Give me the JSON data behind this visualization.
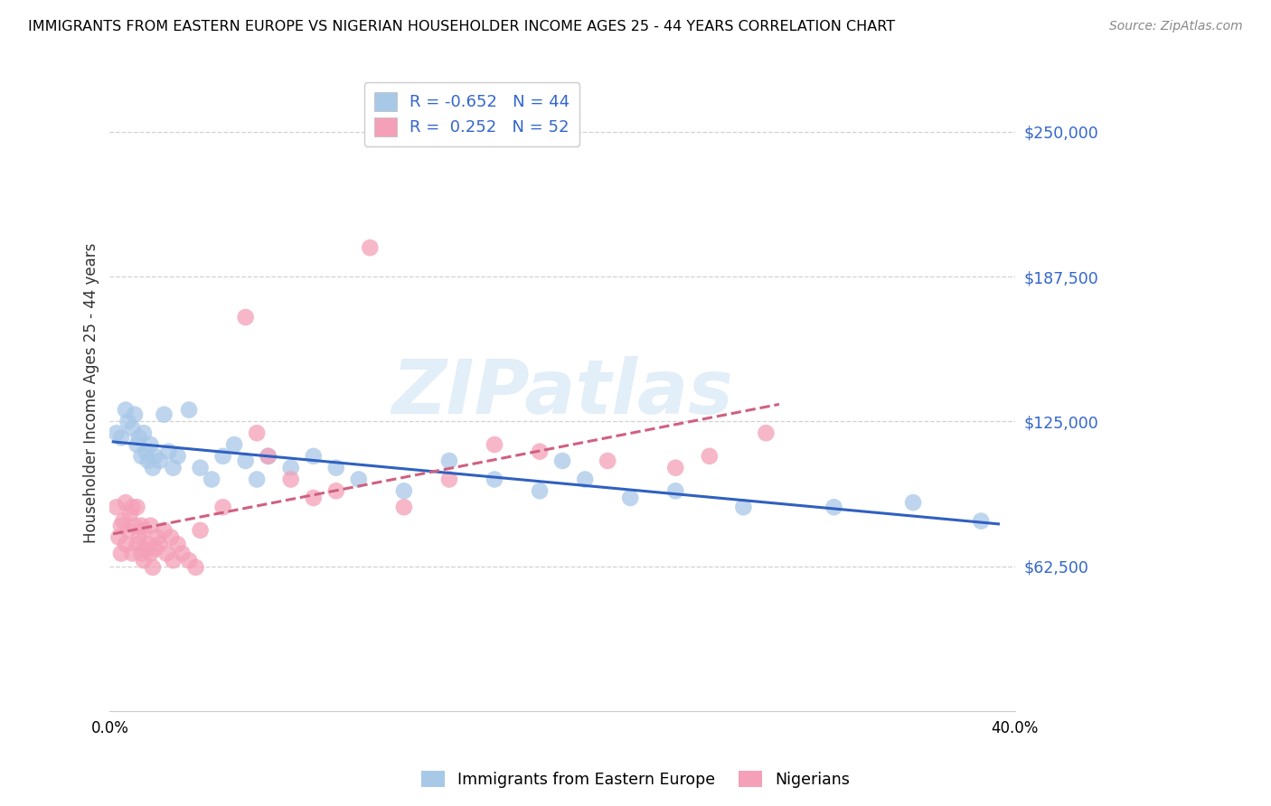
{
  "title": "IMMIGRANTS FROM EASTERN EUROPE VS NIGERIAN HOUSEHOLDER INCOME AGES 25 - 44 YEARS CORRELATION CHART",
  "source": "Source: ZipAtlas.com",
  "ylabel": "Householder Income Ages 25 - 44 years",
  "xlim": [
    0.0,
    0.4
  ],
  "ylim": [
    0,
    275000
  ],
  "yticks": [
    62500,
    125000,
    187500,
    250000
  ],
  "ytick_labels": [
    "$62,500",
    "$125,000",
    "$187,500",
    "$250,000"
  ],
  "xticks": [
    0.0,
    0.05,
    0.1,
    0.15,
    0.2,
    0.25,
    0.3,
    0.35,
    0.4
  ],
  "xtick_labels": [
    "0.0%",
    "",
    "",
    "",
    "",
    "",
    "",
    "",
    "40.0%"
  ],
  "blue_R": -0.652,
  "blue_N": 44,
  "pink_R": 0.252,
  "pink_N": 52,
  "blue_color": "#a8c8e8",
  "pink_color": "#f4a0b8",
  "blue_line_color": "#3060c0",
  "pink_line_color": "#d06080",
  "watermark": "ZIPatlas",
  "blue_scatter_x": [
    0.003,
    0.005,
    0.007,
    0.008,
    0.01,
    0.011,
    0.012,
    0.013,
    0.014,
    0.015,
    0.016,
    0.017,
    0.018,
    0.019,
    0.02,
    0.022,
    0.024,
    0.026,
    0.028,
    0.03,
    0.035,
    0.04,
    0.045,
    0.05,
    0.055,
    0.06,
    0.065,
    0.07,
    0.08,
    0.09,
    0.1,
    0.11,
    0.13,
    0.15,
    0.17,
    0.19,
    0.2,
    0.21,
    0.23,
    0.25,
    0.28,
    0.32,
    0.355,
    0.385
  ],
  "blue_scatter_y": [
    120000,
    118000,
    130000,
    125000,
    122000,
    128000,
    115000,
    118000,
    110000,
    120000,
    112000,
    108000,
    115000,
    105000,
    110000,
    108000,
    128000,
    112000,
    105000,
    110000,
    130000,
    105000,
    100000,
    110000,
    115000,
    108000,
    100000,
    110000,
    105000,
    110000,
    105000,
    100000,
    95000,
    108000,
    100000,
    95000,
    108000,
    100000,
    92000,
    95000,
    88000,
    88000,
    90000,
    82000
  ],
  "pink_scatter_x": [
    0.003,
    0.004,
    0.005,
    0.005,
    0.006,
    0.007,
    0.007,
    0.008,
    0.009,
    0.01,
    0.01,
    0.011,
    0.012,
    0.012,
    0.013,
    0.014,
    0.014,
    0.015,
    0.015,
    0.016,
    0.017,
    0.018,
    0.018,
    0.019,
    0.02,
    0.021,
    0.022,
    0.024,
    0.025,
    0.027,
    0.028,
    0.03,
    0.032,
    0.035,
    0.038,
    0.04,
    0.05,
    0.06,
    0.065,
    0.07,
    0.08,
    0.09,
    0.1,
    0.115,
    0.13,
    0.15,
    0.17,
    0.19,
    0.22,
    0.25,
    0.265,
    0.29
  ],
  "pink_scatter_y": [
    88000,
    75000,
    80000,
    68000,
    82000,
    90000,
    72000,
    78000,
    85000,
    88000,
    68000,
    80000,
    88000,
    72000,
    75000,
    80000,
    68000,
    78000,
    65000,
    70000,
    72000,
    68000,
    80000,
    62000,
    70000,
    75000,
    72000,
    78000,
    68000,
    75000,
    65000,
    72000,
    68000,
    65000,
    62000,
    78000,
    88000,
    170000,
    120000,
    110000,
    100000,
    92000,
    95000,
    200000,
    88000,
    100000,
    115000,
    112000,
    108000,
    105000,
    110000,
    120000
  ]
}
